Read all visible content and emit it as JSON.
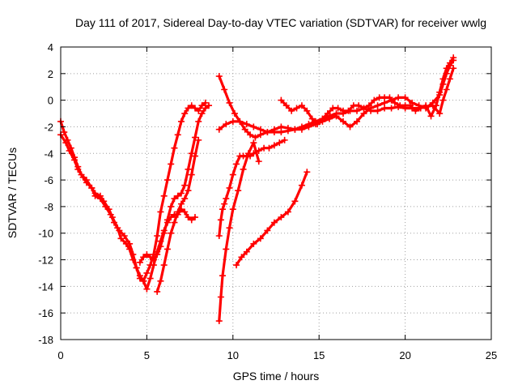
{
  "chart_data": {
    "type": "scatter",
    "title": "Day 111 of 2017, Sidereal Day-to-day VTEC variation (SDTVAR) for receiver wwlg",
    "xlabel": "GPS time / hours",
    "ylabel": "SDTVAR / TECUs",
    "xlim": [
      0,
      25
    ],
    "ylim": [
      -18,
      4
    ],
    "xticks": [
      0,
      5,
      10,
      15,
      20,
      25
    ],
    "yticks": [
      -18,
      -16,
      -14,
      -12,
      -10,
      -8,
      -6,
      -4,
      -2,
      0,
      2,
      4
    ],
    "grid": true,
    "marker": "+",
    "colors": {
      "series": "#ff0000"
    },
    "series": [
      {
        "x": [
          0.0,
          0.3,
          0.5,
          0.8,
          1.0,
          1.3,
          1.5,
          1.8,
          2.0,
          2.3,
          2.5,
          2.8,
          3.0,
          3.3,
          3.5,
          3.8,
          4.0,
          4.2,
          4.4,
          4.6,
          4.8,
          5.0,
          5.2,
          5.4,
          5.6,
          5.8,
          6.0,
          6.2,
          6.4,
          6.6,
          6.8,
          7.0,
          7.2,
          7.4,
          7.6,
          7.8
        ],
        "y": [
          -2.6,
          -3.2,
          -3.8,
          -4.5,
          -5.2,
          -5.8,
          -6.2,
          -6.6,
          -7.0,
          -7.2,
          -7.6,
          -8.2,
          -8.8,
          -9.6,
          -10.4,
          -10.8,
          -11.2,
          -12.0,
          -12.6,
          -13.2,
          -13.6,
          -14.2,
          -13.4,
          -12.4,
          -11.4,
          -10.6,
          -9.8,
          -9.2,
          -8.8,
          -8.6,
          -8.6,
          -8.2,
          -8.4,
          -8.8,
          -9.0,
          -8.8
        ]
      },
      {
        "x": [
          0.0,
          0.2,
          0.4,
          0.6,
          0.8,
          1.0,
          1.2,
          1.5,
          1.8,
          2.0,
          2.3,
          2.6,
          2.9,
          3.1,
          3.4,
          3.7,
          4.0,
          4.2,
          4.4,
          4.6,
          4.8,
          5.0,
          5.2,
          5.4,
          5.6,
          5.8,
          6.0,
          6.2,
          6.4,
          6.6,
          6.8,
          7.0,
          7.2,
          7.4,
          7.6,
          7.8,
          8.0,
          8.2,
          8.4
        ],
        "y": [
          -1.6,
          -2.4,
          -3.0,
          -3.6,
          -4.3,
          -5.0,
          -5.6,
          -6.0,
          -6.6,
          -7.2,
          -7.4,
          -8.0,
          -8.6,
          -9.2,
          -9.8,
          -10.2,
          -10.8,
          -11.6,
          -12.6,
          -13.4,
          -13.6,
          -13.0,
          -12.4,
          -11.6,
          -10.2,
          -8.4,
          -7.2,
          -6.0,
          -4.8,
          -3.6,
          -2.6,
          -1.6,
          -1.0,
          -0.6,
          -0.4,
          -0.6,
          -0.8,
          -0.4,
          -0.2
        ]
      },
      {
        "x": [
          4.6,
          4.8,
          5.0,
          5.2,
          5.4,
          5.6,
          5.8,
          6.0,
          6.2,
          6.4,
          6.6,
          6.8,
          7.0,
          7.2,
          7.4,
          7.6,
          7.8,
          8.0,
          8.2,
          8.4,
          8.6
        ],
        "y": [
          -12.2,
          -11.8,
          -11.6,
          -11.8,
          -12.0,
          -11.6,
          -11.0,
          -10.0,
          -9.0,
          -8.0,
          -7.4,
          -7.2,
          -7.0,
          -6.4,
          -5.2,
          -4.0,
          -2.8,
          -1.6,
          -1.0,
          -0.6,
          -0.4
        ]
      },
      {
        "x": [
          5.6,
          5.8,
          6.0,
          6.2,
          6.4,
          6.6,
          6.8,
          7.0,
          7.2,
          7.4,
          7.6,
          7.8,
          8.0
        ],
        "y": [
          -14.4,
          -13.6,
          -12.4,
          -11.2,
          -10.0,
          -9.2,
          -8.4,
          -7.8,
          -7.4,
          -6.8,
          -5.6,
          -4.2,
          -3.0
        ]
      },
      {
        "x": [
          9.2,
          9.5,
          9.8,
          10.1,
          10.4,
          10.7,
          11.0,
          11.3,
          11.6,
          12.0,
          12.4,
          12.8,
          13.2,
          13.6,
          14.0,
          14.4,
          14.8,
          15.2,
          15.6,
          16.0,
          16.4,
          16.8,
          17.2,
          17.6,
          18.0,
          18.4,
          18.8,
          19.2,
          19.6,
          20.0,
          20.4,
          20.8,
          21.2,
          21.6,
          22.0,
          22.2,
          22.4,
          22.6,
          22.8
        ],
        "y": [
          1.8,
          0.8,
          -0.2,
          -1.0,
          -1.6,
          -2.2,
          -2.6,
          -2.8,
          -2.6,
          -2.4,
          -2.2,
          -2.0,
          -2.1,
          -2.2,
          -2.0,
          -1.8,
          -1.6,
          -1.4,
          -1.2,
          -1.0,
          -1.0,
          -0.8,
          -0.8,
          -0.6,
          -0.8,
          -0.8,
          -0.6,
          -0.6,
          -0.5,
          -0.6,
          -0.6,
          -0.6,
          -0.5,
          -0.4,
          -1.0,
          0.0,
          0.8,
          1.6,
          2.4
        ]
      },
      {
        "x": [
          9.2,
          9.6,
          10.0,
          10.4,
          10.8,
          11.2,
          11.6,
          12.0,
          12.4,
          12.8,
          13.2,
          13.6,
          14.0,
          14.4,
          14.8,
          15.2,
          15.6,
          16.0,
          16.4,
          16.8,
          17.2,
          17.6,
          18.0,
          18.4,
          18.8,
          19.2,
          19.6,
          20.0,
          20.4,
          20.8,
          21.2,
          21.6,
          22.0,
          22.2,
          22.4,
          22.6,
          22.8
        ],
        "y": [
          -2.2,
          -1.8,
          -1.6,
          -1.6,
          -1.8,
          -2.0,
          -2.2,
          -2.4,
          -2.4,
          -2.4,
          -2.3,
          -2.2,
          -2.2,
          -2.0,
          -1.8,
          -1.6,
          -1.4,
          -1.2,
          -1.6,
          -2.0,
          -1.6,
          -1.0,
          -0.6,
          -0.4,
          -0.2,
          0.0,
          0.2,
          0.2,
          -0.2,
          -0.4,
          -0.6,
          -0.2,
          0.4,
          1.2,
          2.0,
          2.6,
          3.0
        ]
      },
      {
        "x": [
          12.8,
          13.1,
          13.4,
          13.7,
          14.0,
          14.3,
          14.6,
          14.9,
          15.2,
          15.5,
          15.8,
          16.1,
          16.4,
          16.7,
          17.0,
          17.3,
          17.6,
          17.9,
          18.2,
          18.5,
          18.8,
          19.1,
          19.4,
          19.7,
          20.0,
          20.3,
          20.6,
          20.9,
          21.2,
          21.5,
          21.8,
          22.0,
          22.2,
          22.4,
          22.6,
          22.8
        ],
        "y": [
          0.0,
          -0.4,
          -0.8,
          -0.6,
          -0.4,
          -0.8,
          -1.4,
          -1.8,
          -1.4,
          -1.0,
          -0.6,
          -0.6,
          -0.8,
          -0.8,
          -0.4,
          -0.4,
          -0.6,
          -0.4,
          0.0,
          0.2,
          0.2,
          0.2,
          -0.2,
          -0.4,
          -0.4,
          -0.4,
          -0.8,
          -0.6,
          -0.4,
          -1.2,
          -0.4,
          0.6,
          1.6,
          2.4,
          2.8,
          3.2
        ]
      },
      {
        "x": [
          9.2,
          9.3,
          9.4,
          9.5,
          9.6,
          9.8,
          10.0,
          10.2,
          10.4,
          10.6,
          10.8,
          11.0,
          11.2,
          11.5,
          11.8,
          12.1,
          12.4,
          12.7,
          13.0
        ],
        "y": [
          -10.2,
          -9.0,
          -8.2,
          -7.8,
          -7.4,
          -6.6,
          -5.6,
          -4.8,
          -4.2,
          -4.2,
          -4.2,
          -4.2,
          -4.0,
          -3.8,
          -3.6,
          -3.6,
          -3.4,
          -3.2,
          -3.0
        ]
      },
      {
        "x": [
          9.2,
          9.3,
          9.4,
          9.6,
          9.8,
          10.0,
          10.3,
          10.6,
          10.9,
          11.2,
          11.5
        ],
        "y": [
          -16.6,
          -14.8,
          -13.2,
          -11.2,
          -9.6,
          -8.2,
          -6.8,
          -5.2,
          -4.0,
          -3.2,
          -4.6
        ]
      },
      {
        "x": [
          10.2,
          10.5,
          10.8,
          11.2,
          11.6,
          12.0,
          12.4,
          12.8,
          13.2,
          13.6,
          14.0,
          14.3
        ],
        "y": [
          -12.4,
          -11.8,
          -11.4,
          -10.8,
          -10.4,
          -9.8,
          -9.2,
          -8.8,
          -8.4,
          -7.6,
          -6.4,
          -5.4
        ]
      }
    ]
  }
}
